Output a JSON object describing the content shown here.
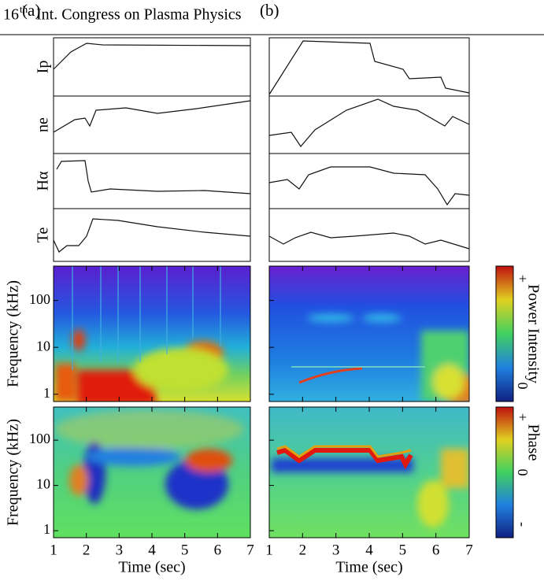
{
  "header": {
    "number": "16",
    "ordinal": "th",
    "title": "Int. Congress on Plasma Physics"
  },
  "panels": [
    {
      "label": "(a)"
    },
    {
      "label": "(b)"
    }
  ],
  "traces": [
    "Ip",
    "ne",
    "Hα",
    "Te"
  ],
  "spectrograms": {
    "y_label": "Frequency (kHz)",
    "log_y": true,
    "ylim": [
      0.7,
      540
    ],
    "yticks": [
      1,
      10,
      100
    ],
    "x_label": "Time (sec)",
    "xlim": [
      1,
      7
    ],
    "xticks": [
      1,
      2,
      3,
      4,
      5,
      6,
      7
    ]
  },
  "colorbars": [
    {
      "title": "Power Intensity",
      "ticks": [
        "+",
        "0"
      ]
    },
    {
      "title": "Phase",
      "ticks": [
        "+",
        "0",
        "-"
      ]
    }
  ]
}
